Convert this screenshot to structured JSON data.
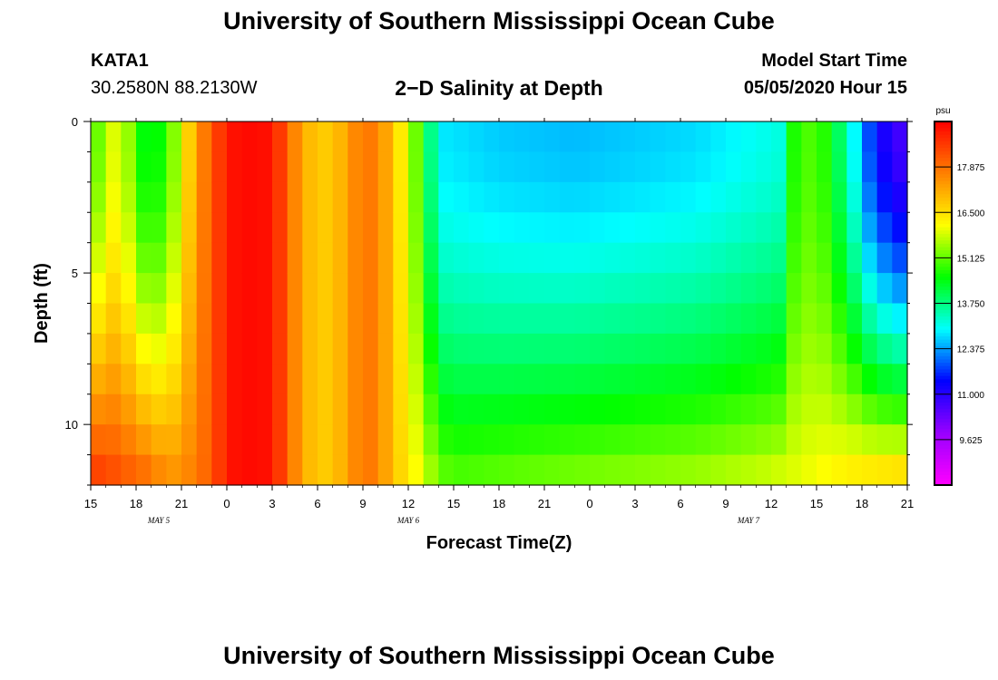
{
  "header": {
    "title": "University of Southern Mississippi Ocean Cube",
    "station": "KATA1",
    "coords": "30.2580N 88.2130W",
    "plot_title": "2−D Salinity at Depth",
    "start_label": "Model Start Time",
    "start_value": "05/05/2020 Hour 15"
  },
  "footer": {
    "title": "University of Southern Mississippi Ocean Cube"
  },
  "chart_data": {
    "type": "heatmap",
    "title": "2-D Salinity at Depth",
    "xlabel": "Forecast Time(Z)",
    "ylabel": "Depth (ft)",
    "x_ticks": [
      "15",
      "18",
      "21",
      "0",
      "3",
      "6",
      "9",
      "12",
      "15",
      "18",
      "21",
      "0",
      "3",
      "6",
      "9",
      "12",
      "15",
      "18",
      "21"
    ],
    "x_range_hours": [
      0,
      54
    ],
    "date_labels": [
      {
        "label": "MAY 5",
        "hour": 4.5
      },
      {
        "label": "MAY 6",
        "hour": 21
      },
      {
        "label": "MAY 7",
        "hour": 43.5
      }
    ],
    "y_ticks": [
      0,
      5,
      10
    ],
    "ylim": [
      0,
      12
    ],
    "colorbar": {
      "unit": "psu",
      "ticks": [
        "17.875",
        "16.500",
        "15.125",
        "13.750",
        "12.375",
        "11.000",
        "9.625"
      ],
      "min": 8.7,
      "max": 19.7,
      "colors": [
        "#ff00ff",
        "#9900ff",
        "#0000ff",
        "#00ffff",
        "#00ff00",
        "#ffff00",
        "#ff8000",
        "#ff0000"
      ]
    },
    "surface_profile": [
      [
        0,
        15.4
      ],
      [
        1,
        15.9
      ],
      [
        2,
        16.8
      ],
      [
        3,
        15.0
      ],
      [
        4,
        14.9
      ],
      [
        5,
        15.1
      ],
      [
        6,
        16.5
      ],
      [
        7,
        17.8
      ],
      [
        8,
        18.6
      ],
      [
        9,
        19.4
      ],
      [
        10,
        19.6
      ],
      [
        12,
        19.5
      ],
      [
        13,
        18.5
      ],
      [
        14,
        17.6
      ],
      [
        15,
        17.2
      ],
      [
        16,
        17.2
      ],
      [
        18,
        18.3
      ],
      [
        19,
        18.1
      ],
      [
        20,
        17.3
      ],
      [
        21,
        16.3
      ],
      [
        22,
        15.0
      ],
      [
        23,
        13.3
      ],
      [
        27,
        13.1
      ],
      [
        32,
        13.0
      ],
      [
        40,
        13.2
      ],
      [
        45.5,
        13.6
      ],
      [
        46,
        15.0
      ],
      [
        48,
        15.6
      ],
      [
        50,
        14.0
      ],
      [
        51,
        12.8
      ],
      [
        52,
        11.8
      ],
      [
        54,
        11.0
      ]
    ],
    "bottom_profile": [
      [
        0,
        18.9
      ],
      [
        1,
        18.8
      ],
      [
        2,
        18.6
      ],
      [
        3,
        18.4
      ],
      [
        4,
        18.2
      ],
      [
        5,
        17.8
      ],
      [
        6,
        17.9
      ],
      [
        7,
        18.2
      ],
      [
        8,
        18.6
      ],
      [
        9,
        19.4
      ],
      [
        10,
        19.6
      ],
      [
        12,
        19.5
      ],
      [
        13,
        18.5
      ],
      [
        14,
        17.6
      ],
      [
        15,
        17.2
      ],
      [
        16,
        17.2
      ],
      [
        18,
        18.3
      ],
      [
        19,
        18.1
      ],
      [
        20,
        17.3
      ],
      [
        21,
        16.8
      ],
      [
        22,
        16.3
      ],
      [
        23,
        15.6
      ],
      [
        24,
        15.4
      ],
      [
        30,
        15.6
      ],
      [
        40,
        15.9
      ],
      [
        45,
        16.2
      ],
      [
        50,
        16.7
      ],
      [
        54,
        16.9
      ]
    ]
  }
}
